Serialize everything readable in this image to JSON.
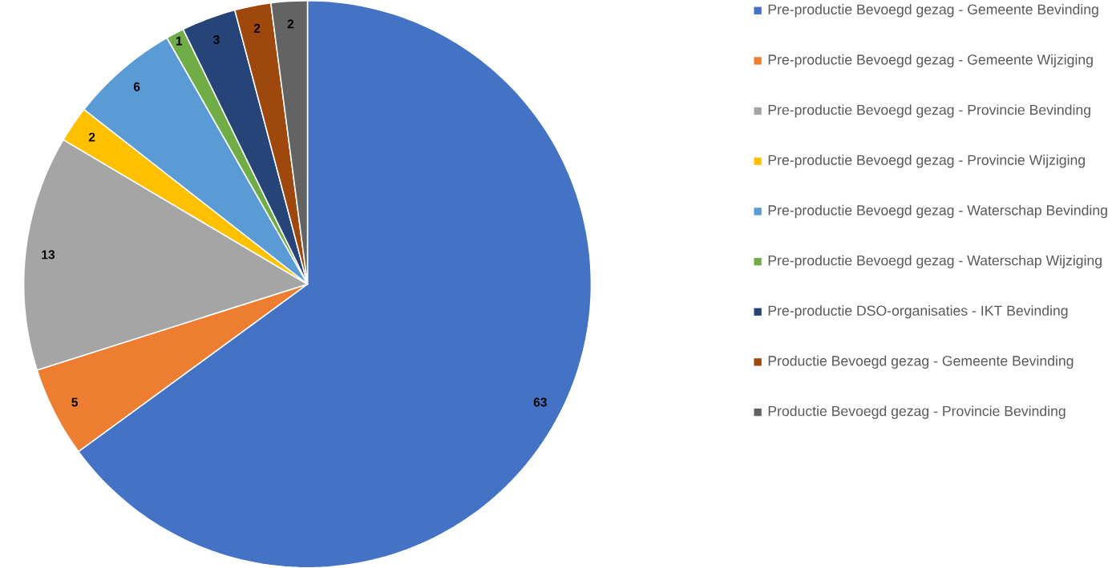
{
  "chart_data": {
    "type": "pie",
    "categories": [
      "Pre-productie Bevoegd gezag - Gemeente Bevinding",
      "Pre-productie Bevoegd gezag - Gemeente Wijziging",
      "Pre-productie Bevoegd gezag - Provincie Bevinding",
      "Pre-productie Bevoegd gezag - Provincie Wijziging",
      "Pre-productie Bevoegd gezag - Waterschap Bevinding",
      "Pre-productie Bevoegd gezag - Waterschap Wijziging",
      "Pre-productie DSO-organisaties - IKT Bevinding",
      "Productie Bevoegd gezag - Gemeente Bevinding",
      "Productie Bevoegd gezag - Provincie Bevinding"
    ],
    "values": [
      63,
      5,
      13,
      2,
      6,
      1,
      3,
      2,
      2
    ],
    "colors": [
      "#4472c4",
      "#ed7d31",
      "#a5a5a5",
      "#ffc000",
      "#5b9bd5",
      "#70ad47",
      "#264478",
      "#9e480e",
      "#636363"
    ],
    "data_labels": true,
    "legend": "right"
  }
}
